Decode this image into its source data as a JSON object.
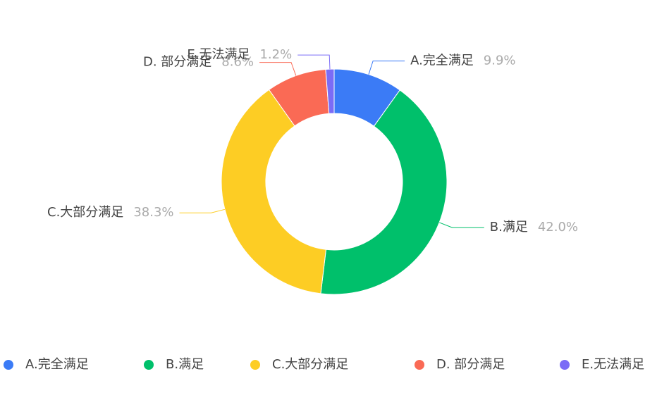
{
  "chart_data": {
    "type": "pie",
    "categories": [
      "A.完全满足",
      "B.满足",
      "C.大部分满足",
      "D. 部分满足",
      "E.无法满足"
    ],
    "values": [
      9.9,
      42.0,
      38.3,
      8.6,
      1.2
    ],
    "value_labels": [
      "9.9%",
      "42.0%",
      "38.3%",
      "8.6%",
      "1.2%"
    ],
    "colors": [
      "#3b7bf6",
      "#00c06b",
      "#fdcd24",
      "#fa6a55",
      "#7b6cf6"
    ],
    "legend": "bottom"
  }
}
